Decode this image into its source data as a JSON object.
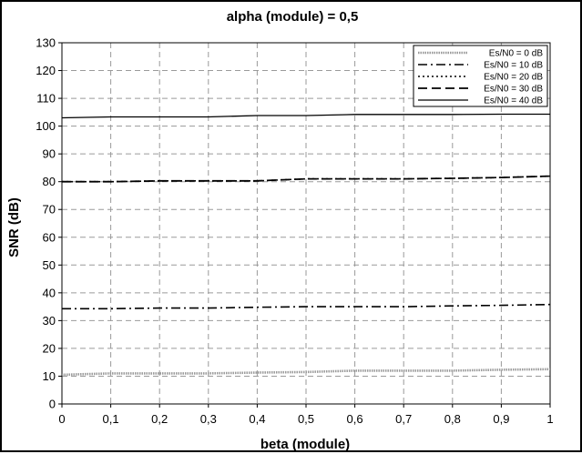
{
  "chart_data": {
    "type": "line",
    "title": "alpha (module) = 0,5",
    "xlabel": "beta (module)",
    "ylabel": "SNR (dB)",
    "xlim": [
      0,
      1
    ],
    "ylim": [
      0,
      130
    ],
    "x_ticks": [
      "0",
      "0,1",
      "0,2",
      "0,3",
      "0,4",
      "0,5",
      "0,6",
      "0,7",
      "0,8",
      "0,9",
      "1"
    ],
    "y_ticks": [
      "0",
      "10",
      "20",
      "30",
      "40",
      "50",
      "60",
      "70",
      "80",
      "90",
      "100",
      "110",
      "120",
      "130"
    ],
    "grid": true,
    "legend_position": "top-right",
    "x": [
      0,
      0.1,
      0.2,
      0.3,
      0.4,
      0.5,
      0.6,
      0.7,
      0.8,
      0.9,
      1.0
    ],
    "series": [
      {
        "name": "Es/N0 = 0 dB",
        "style": "dotted-thick",
        "color": "#9a9a9a",
        "values": [
          10.5,
          11.0,
          11.0,
          11.0,
          11.3,
          11.5,
          12.0,
          12.0,
          12.0,
          12.3,
          12.5
        ]
      },
      {
        "name": "Es/N0 = 10 dB",
        "style": "dash-dot",
        "color": "#000000",
        "values": [
          34.3,
          34.3,
          34.5,
          34.5,
          34.8,
          35.0,
          35.0,
          35.0,
          35.3,
          35.5,
          35.8
        ]
      },
      {
        "name": "Es/N0 = 20 dB",
        "style": "dotted",
        "color": "#000000",
        "values": [
          80.0,
          80.0,
          80.3,
          80.3,
          80.3,
          81.0,
          81.0,
          81.0,
          81.2,
          81.5,
          82.0
        ]
      },
      {
        "name": "Es/N0 = 30 dB",
        "style": "dashed",
        "color": "#000000",
        "values": [
          80.0,
          80.0,
          80.3,
          80.3,
          80.3,
          81.0,
          81.0,
          81.0,
          81.2,
          81.5,
          82.0
        ]
      },
      {
        "name": "Es/N0 = 40 dB",
        "style": "solid",
        "color": "#000000",
        "values": [
          103.0,
          103.3,
          103.3,
          103.3,
          103.8,
          103.8,
          104.2,
          104.2,
          104.2,
          104.3,
          104.3
        ]
      }
    ]
  }
}
